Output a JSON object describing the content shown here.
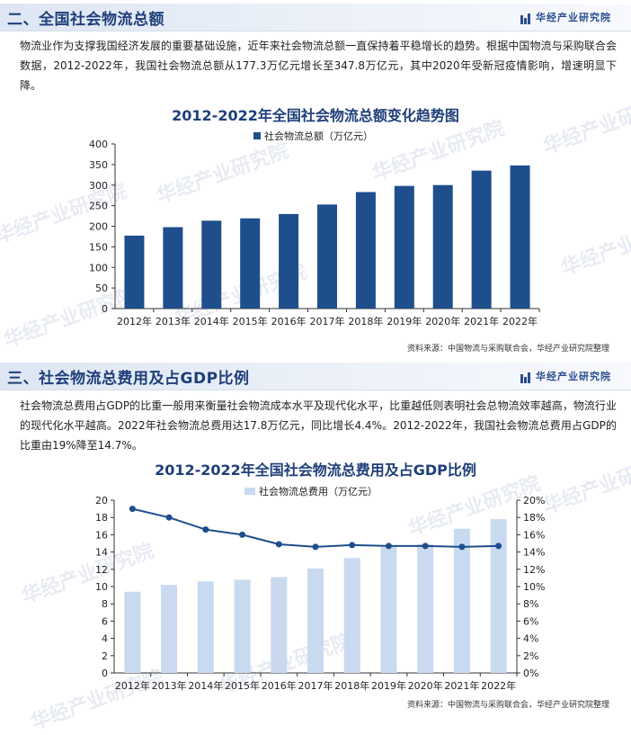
{
  "brand": "华经产业研究院",
  "section1": {
    "title": "二、全国社会物流总额",
    "paragraph": "物流业作为支撑我国经济发展的重要基础设施，近年来社会物流总额一直保持着平稳增长的趋势。根据中国物流与采购联合会数据，2012-2022年，我国社会物流总额从177.3万亿元增长至347.8万亿元，其中2020年受新冠疫情影响，增速明显下降。",
    "source": "资料来源：中国物流与采购联合会，华经产业研究院整理"
  },
  "section2": {
    "title": "三、社会物流总费用及占GDP比例",
    "paragraph": "社会物流总费用占GDP的比重一般用来衡量社会物流成本水平及现代化水平，比重越低则表明社会总物流效率越高，物流行业的现代化水平越高。2022年社会物流总费用达17.8万亿元，同比增长4.4%。2012-2022年，我国社会物流总费用占GDP的比重由19%降至14.7%。",
    "source": "资料来源：中国物流与采购联合会，华经产业研究院整理"
  },
  "colors": {
    "bar1": "#1f4e8c",
    "bar2": "#c9d9f0",
    "line": "#1f4e8c",
    "axis": "#333333"
  },
  "chart_data": [
    {
      "type": "bar",
      "title": "2012-2022年全国社会物流总额变化趋势图",
      "categories": [
        "2012年",
        "2013年",
        "2014年",
        "2015年",
        "2016年",
        "2017年",
        "2018年",
        "2019年",
        "2020年",
        "2021年",
        "2022年"
      ],
      "series": [
        {
          "name": "社会物流总额（万亿元）",
          "values": [
            177.3,
            197.8,
            213.5,
            219.2,
            229.7,
            252.8,
            283.1,
            298.0,
            300.1,
            335.2,
            347.8
          ]
        }
      ],
      "yticks": [
        "0",
        "50",
        "100",
        "150",
        "200",
        "250",
        "300",
        "350",
        "400"
      ],
      "ylim": [
        0,
        400
      ],
      "legend": "top-center",
      "grid": false
    },
    {
      "type": "bar",
      "title": "2012-2022年全国社会物流总费用及占GDP比例",
      "categories": [
        "2012年",
        "2013年",
        "2014年",
        "2015年",
        "2016年",
        "2017年",
        "2018年",
        "2019年",
        "2020年",
        "2021年",
        "2022年"
      ],
      "series": [
        {
          "name": "社会物流总费用（万亿元）",
          "type": "bar",
          "axis": "left",
          "values": [
            9.4,
            10.2,
            10.6,
            10.8,
            11.1,
            12.1,
            13.3,
            14.6,
            14.9,
            16.7,
            17.8
          ]
        },
        {
          "type": "line",
          "axis": "right",
          "values": [
            19.0,
            18.0,
            16.6,
            16.0,
            14.9,
            14.6,
            14.8,
            14.7,
            14.7,
            14.6,
            14.7
          ]
        }
      ],
      "yticks_left": [
        "0",
        "2",
        "4",
        "6",
        "8",
        "10",
        "12",
        "14",
        "16",
        "18",
        "20"
      ],
      "yticks_right": [
        "0%",
        "2%",
        "4%",
        "6%",
        "8%",
        "10%",
        "12%",
        "14%",
        "16%",
        "18%",
        "20%"
      ],
      "ylim_left": [
        0,
        20
      ],
      "ylim_right": [
        0,
        20
      ],
      "legend": "top-center",
      "grid": false
    }
  ]
}
